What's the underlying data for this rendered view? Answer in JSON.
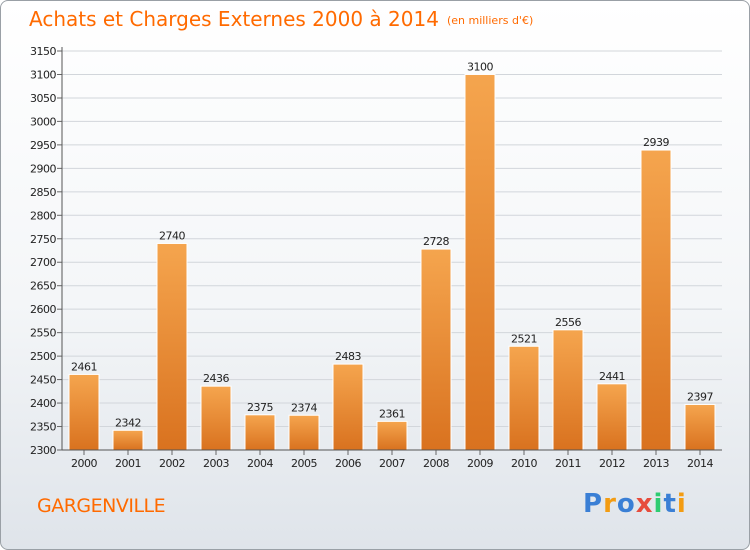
{
  "header": {
    "title": "Achats et Charges Externes 2000 à 2014",
    "unit": "(en milliers d'€)"
  },
  "footer": {
    "city": "GARGENVILLE",
    "logo_letters": [
      {
        "ch": "P",
        "color": "#3a7fd5"
      },
      {
        "ch": "r",
        "color": "#f39c12"
      },
      {
        "ch": "o",
        "color": "#3a7fd5"
      },
      {
        "ch": "x",
        "color": "#e74c3c"
      },
      {
        "ch": "i",
        "color": "#2ecc71"
      },
      {
        "ch": "t",
        "color": "#3a7fd5"
      },
      {
        "ch": "i",
        "color": "#f39c12"
      }
    ]
  },
  "chart_data": {
    "type": "bar",
    "categories": [
      "2000",
      "2001",
      "2002",
      "2003",
      "2004",
      "2005",
      "2006",
      "2007",
      "2008",
      "2009",
      "2010",
      "2011",
      "2012",
      "2013",
      "2014"
    ],
    "values": [
      2461,
      2342,
      2740,
      2436,
      2375,
      2374,
      2483,
      2361,
      2728,
      3100,
      2521,
      2556,
      2441,
      2939,
      2397
    ],
    "ylim": [
      2300,
      3150
    ],
    "ytick_step": 50,
    "grid": true,
    "bar_color": "#f0923a",
    "bar_color_dark": "#d9721f"
  }
}
